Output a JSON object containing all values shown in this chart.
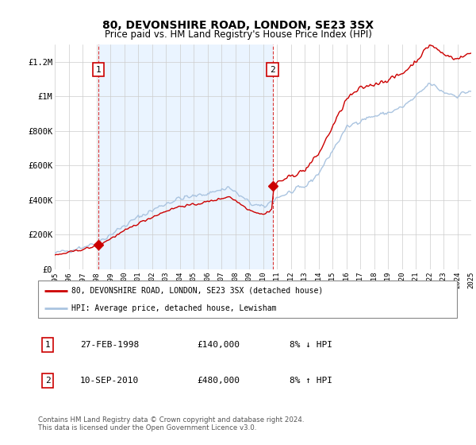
{
  "title": "80, DEVONSHIRE ROAD, LONDON, SE23 3SX",
  "subtitle": "Price paid vs. HM Land Registry's House Price Index (HPI)",
  "hpi_color": "#aac4e0",
  "price_color": "#cc0000",
  "shade_color": "#ddeeff",
  "purchase1_date": 1998.15,
  "purchase1_price": 140000,
  "purchase2_date": 2010.69,
  "purchase2_price": 480000,
  "legend_line1": "80, DEVONSHIRE ROAD, LONDON, SE23 3SX (detached house)",
  "legend_line2": "HPI: Average price, detached house, Lewisham",
  "table_rows": [
    [
      "1",
      "27-FEB-1998",
      "£140,000",
      "8% ↓ HPI"
    ],
    [
      "2",
      "10-SEP-2010",
      "£480,000",
      "8% ↑ HPI"
    ]
  ],
  "footer": "Contains HM Land Registry data © Crown copyright and database right 2024.\nThis data is licensed under the Open Government Licence v3.0.",
  "ylim": [
    0,
    1300000
  ],
  "yticks": [
    0,
    200000,
    400000,
    600000,
    800000,
    1000000,
    1200000
  ],
  "ytick_labels": [
    "£0",
    "£200K",
    "£400K",
    "£600K",
    "£800K",
    "£1M",
    "£1.2M"
  ],
  "xmin": 1995,
  "xmax": 2025
}
